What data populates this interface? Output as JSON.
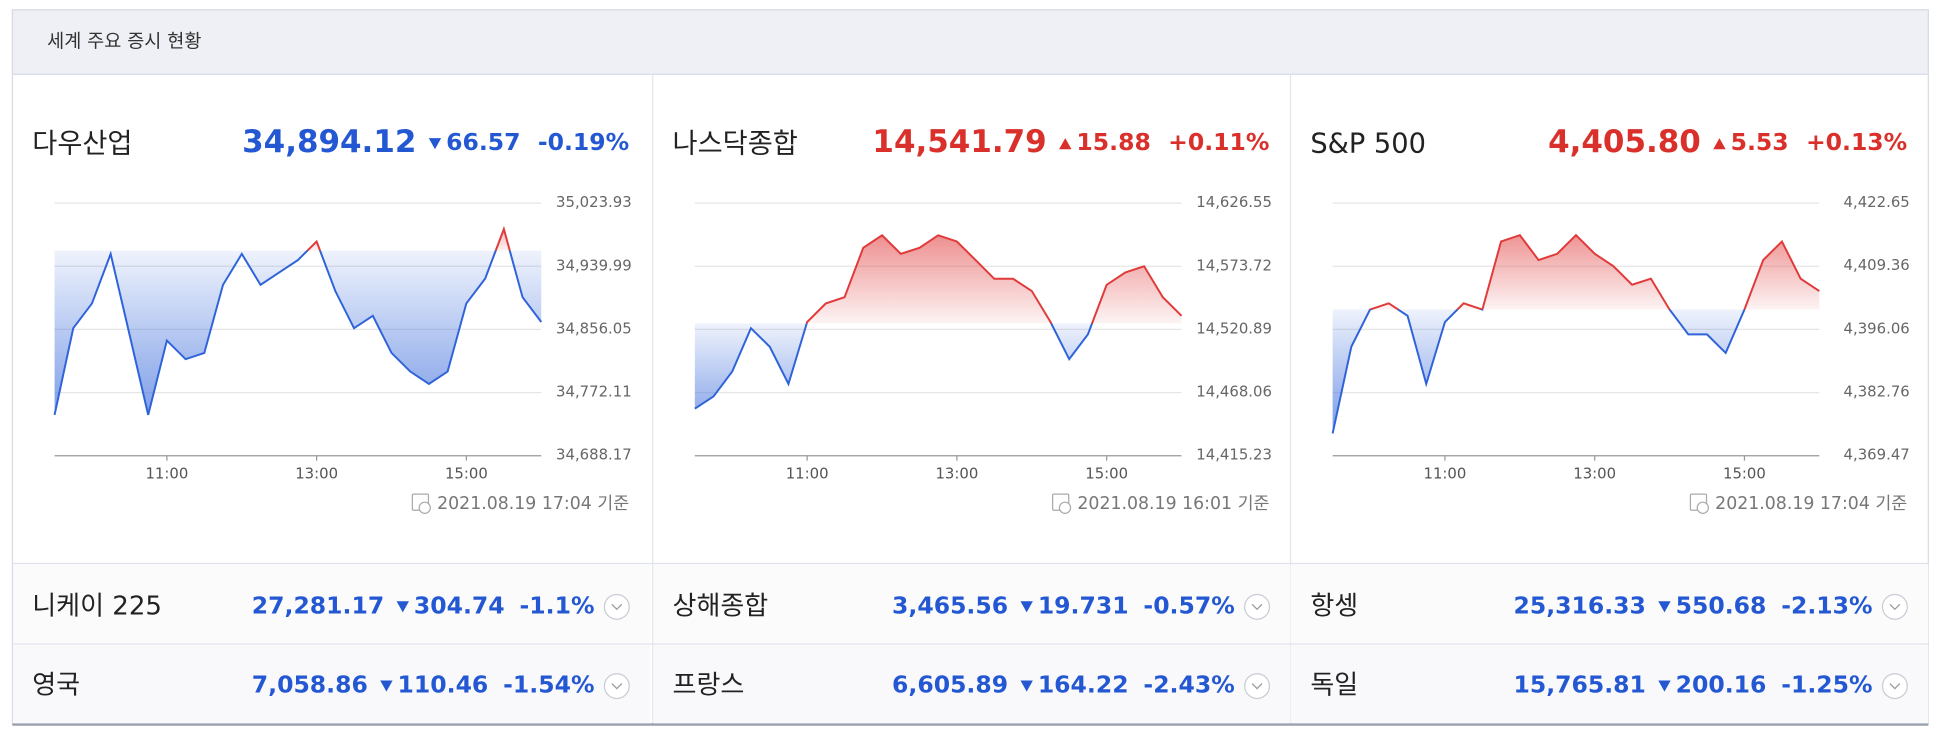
{
  "header": {
    "title": "세계 주요 증시 현황"
  },
  "panels": [
    {
      "name": "다우산업",
      "price": "34,894.12",
      "change": "66.57",
      "change_pct": "-0.19%",
      "direction": "down",
      "time": "2021.08.19 17:04 기준",
      "chart_data": {
        "type": "line",
        "grid": true,
        "colors": {
          "up": "#e03a3a",
          "down": "#2f63d9"
        },
        "x": [
          9.5,
          9.75,
          10,
          10.25,
          10.5,
          10.75,
          11,
          11.25,
          11.5,
          11.75,
          12,
          12.25,
          12.5,
          12.75,
          13,
          13.25,
          13.5,
          13.75,
          14,
          14.25,
          14.5,
          14.75,
          15,
          15.25,
          15.5,
          15.75,
          16
        ],
        "values": [
          34742.5,
          34857.7,
          34890.6,
          34956.5,
          34849.5,
          34742.5,
          34841.2,
          34816.6,
          34824.8,
          34915.3,
          34956.5,
          34915.3,
          34931.8,
          34948.2,
          34972.9,
          34907.1,
          34857.7,
          34874.2,
          34824.8,
          34800.1,
          34783.6,
          34800.1,
          34890.6,
          34923.6,
          34989.4,
          34898.9,
          34866.0
        ],
        "baseline": 34960.69,
        "xlim": [
          9.5,
          16
        ],
        "xticks": [
          {
            "value": 11,
            "label": "11:00"
          },
          {
            "value": 13,
            "label": "13:00"
          },
          {
            "value": 15,
            "label": "15:00"
          }
        ],
        "ylim": [
          34688.17,
          35023.93
        ],
        "yticks": [
          {
            "value": 34688.17,
            "label": "34,688.17"
          },
          {
            "value": 34772.11,
            "label": "34,772.11"
          },
          {
            "value": 34856.05,
            "label": "34,856.05"
          },
          {
            "value": 34939.99,
            "label": "34,939.99"
          },
          {
            "value": 35023.93,
            "label": "35,023.93"
          }
        ]
      }
    },
    {
      "name": "나스닥종합",
      "price": "14,541.79",
      "change": "15.88",
      "change_pct": "+0.11%",
      "direction": "up",
      "time": "2021.08.19 16:01 기준",
      "chart_data": {
        "type": "line",
        "grid": true,
        "colors": {
          "up": "#e03a3a",
          "down": "#2f63d9"
        },
        "x": [
          9.5,
          9.75,
          10,
          10.25,
          10.5,
          10.75,
          11,
          11.25,
          11.5,
          11.75,
          12,
          12.25,
          12.5,
          12.75,
          13,
          13.25,
          13.5,
          13.75,
          14,
          14.25,
          14.5,
          14.75,
          15,
          15.25,
          15.5,
          15.75,
          16
        ],
        "values": [
          14454.6,
          14464.9,
          14485.7,
          14521.9,
          14506.4,
          14475.3,
          14527.1,
          14542.6,
          14547.8,
          14589.2,
          14599.6,
          14584.1,
          14589.2,
          14599.6,
          14594.4,
          14578.9,
          14563.3,
          14563.3,
          14553.0,
          14527.1,
          14496.0,
          14516.7,
          14558.2,
          14568.5,
          14573.7,
          14547.8,
          14532.3
        ],
        "baseline": 14525.91,
        "xlim": [
          9.5,
          16
        ],
        "xticks": [
          {
            "value": 11,
            "label": "11:00"
          },
          {
            "value": 13,
            "label": "13:00"
          },
          {
            "value": 15,
            "label": "15:00"
          }
        ],
        "ylim": [
          14415.23,
          14626.55
        ],
        "yticks": [
          {
            "value": 14415.23,
            "label": "14,415.23"
          },
          {
            "value": 14468.06,
            "label": "14,468.06"
          },
          {
            "value": 14520.89,
            "label": "14,520.89"
          },
          {
            "value": 14573.72,
            "label": "14,573.72"
          },
          {
            "value": 14626.55,
            "label": "14,626.55"
          }
        ]
      }
    },
    {
      "name": "S&P 500",
      "price": "4,405.80",
      "change": "5.53",
      "change_pct": "+0.13%",
      "direction": "up",
      "time": "2021.08.19 17:04 기준",
      "chart_data": {
        "type": "line",
        "grid": true,
        "colors": {
          "up": "#e03a3a",
          "down": "#2f63d9"
        },
        "x": [
          9.5,
          9.75,
          10,
          10.25,
          10.5,
          10.75,
          11,
          11.25,
          11.5,
          11.75,
          12,
          12.25,
          12.5,
          12.75,
          13,
          13.25,
          13.5,
          13.75,
          14,
          14.25,
          14.5,
          14.75,
          15,
          15.25,
          15.5,
          15.75,
          16
        ],
        "values": [
          4374.16,
          4392.42,
          4400.24,
          4401.55,
          4398.94,
          4384.6,
          4397.63,
          4401.55,
          4400.24,
          4414.58,
          4415.89,
          4410.67,
          4411.98,
          4415.89,
          4411.98,
          4409.37,
          4405.46,
          4406.76,
          4400.24,
          4395.03,
          4395.03,
          4391.11,
          4400.24,
          4410.67,
          4414.58,
          4406.76,
          4404.15
        ],
        "baseline": 4400.27,
        "xlim": [
          9.5,
          16
        ],
        "xticks": [
          {
            "value": 11,
            "label": "11:00"
          },
          {
            "value": 13,
            "label": "13:00"
          },
          {
            "value": 15,
            "label": "15:00"
          }
        ],
        "ylim": [
          4369.47,
          4422.65
        ],
        "yticks": [
          {
            "value": 4369.47,
            "label": "4,369.47"
          },
          {
            "value": 4382.76,
            "label": "4,382.76"
          },
          {
            "value": 4396.06,
            "label": "4,396.06"
          },
          {
            "value": 4409.36,
            "label": "4,409.36"
          },
          {
            "value": 4422.65,
            "label": "4,422.65"
          }
        ]
      }
    }
  ],
  "rows": [
    [
      {
        "name": "니케이 225",
        "price": "27,281.17",
        "change": "304.74",
        "change_pct": "-1.1%",
        "direction": "down"
      },
      {
        "name": "상해종합",
        "price": "3,465.56",
        "change": "19.731",
        "change_pct": "-0.57%",
        "direction": "down"
      },
      {
        "name": "항셍",
        "price": "25,316.33",
        "change": "550.68",
        "change_pct": "-2.13%",
        "direction": "down"
      }
    ],
    [
      {
        "name": "영국",
        "price": "7,058.86",
        "change": "110.46",
        "change_pct": "-1.54%",
        "direction": "down"
      },
      {
        "name": "프랑스",
        "price": "6,605.89",
        "change": "164.22",
        "change_pct": "-2.43%",
        "direction": "down"
      },
      {
        "name": "독일",
        "price": "15,765.81",
        "change": "200.16",
        "change_pct": "-1.25%",
        "direction": "down"
      }
    ]
  ]
}
